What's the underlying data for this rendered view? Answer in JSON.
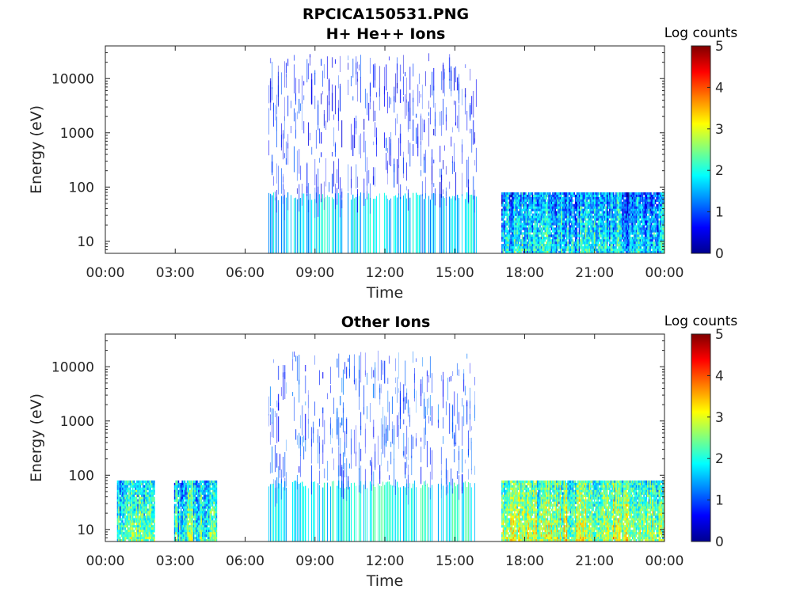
{
  "figure": {
    "title_line1": "RPCICA150531.PNG"
  },
  "chart_data": [
    {
      "type": "heatmap",
      "title": "H+ He++ Ions",
      "xlabel": "Time",
      "ylabel": "Energy (eV)",
      "x_ticks": [
        "00:00",
        "03:00",
        "06:00",
        "09:00",
        "12:00",
        "15:00",
        "18:00",
        "21:00",
        "00:00"
      ],
      "x_tick_hours": [
        0,
        3,
        6,
        9,
        12,
        15,
        18,
        21,
        24
      ],
      "xlim_hours": [
        0,
        24
      ],
      "y_scale": "log",
      "ylim": [
        6,
        40000
      ],
      "y_ticks": [
        10,
        100,
        1000,
        10000
      ],
      "y_tick_labels": [
        "10",
        "100",
        "1000",
        "10000"
      ],
      "colorbar": {
        "label": "Log counts",
        "range": [
          0,
          5
        ],
        "ticks": [
          "0",
          "1",
          "2",
          "3",
          "4",
          "5"
        ],
        "colormap": "jet"
      },
      "regions": [
        {
          "start_hour": 7.0,
          "end_hour": 15.95,
          "energy_min": 6,
          "energy_max": 30000,
          "mean_log_counts": 0.8,
          "density": "sparse"
        },
        {
          "start_hour": 17.0,
          "end_hour": 24.0,
          "energy_min": 6,
          "energy_max": 80,
          "mean_log_counts": 1.2,
          "density": "dense"
        }
      ]
    },
    {
      "type": "heatmap",
      "title": "Other Ions",
      "xlabel": "Time",
      "ylabel": "Energy (eV)",
      "x_ticks": [
        "00:00",
        "03:00",
        "06:00",
        "09:00",
        "12:00",
        "15:00",
        "18:00",
        "21:00",
        "00:00"
      ],
      "x_tick_hours": [
        0,
        3,
        6,
        9,
        12,
        15,
        18,
        21,
        24
      ],
      "xlim_hours": [
        0,
        24
      ],
      "y_scale": "log",
      "ylim": [
        6,
        40000
      ],
      "y_ticks": [
        10,
        100,
        1000,
        10000
      ],
      "y_tick_labels": [
        "10",
        "100",
        "1000",
        "10000"
      ],
      "colorbar": {
        "label": "Log counts",
        "range": [
          0,
          5
        ],
        "ticks": [
          "0",
          "1",
          "2",
          "3",
          "4",
          "5"
        ],
        "colormap": "jet"
      },
      "regions": [
        {
          "start_hour": 0.5,
          "end_hour": 2.1,
          "energy_min": 6,
          "energy_max": 80,
          "mean_log_counts": 1.7,
          "density": "dense"
        },
        {
          "start_hour": 2.95,
          "end_hour": 4.75,
          "energy_min": 6,
          "energy_max": 80,
          "mean_log_counts": 1.6,
          "density": "dense"
        },
        {
          "start_hour": 7.0,
          "end_hour": 15.95,
          "energy_min": 6,
          "energy_max": 20000,
          "mean_log_counts": 1.0,
          "density": "sparse"
        },
        {
          "start_hour": 17.0,
          "end_hour": 24.0,
          "energy_min": 6,
          "energy_max": 80,
          "mean_log_counts": 2.2,
          "density": "dense"
        }
      ]
    }
  ]
}
